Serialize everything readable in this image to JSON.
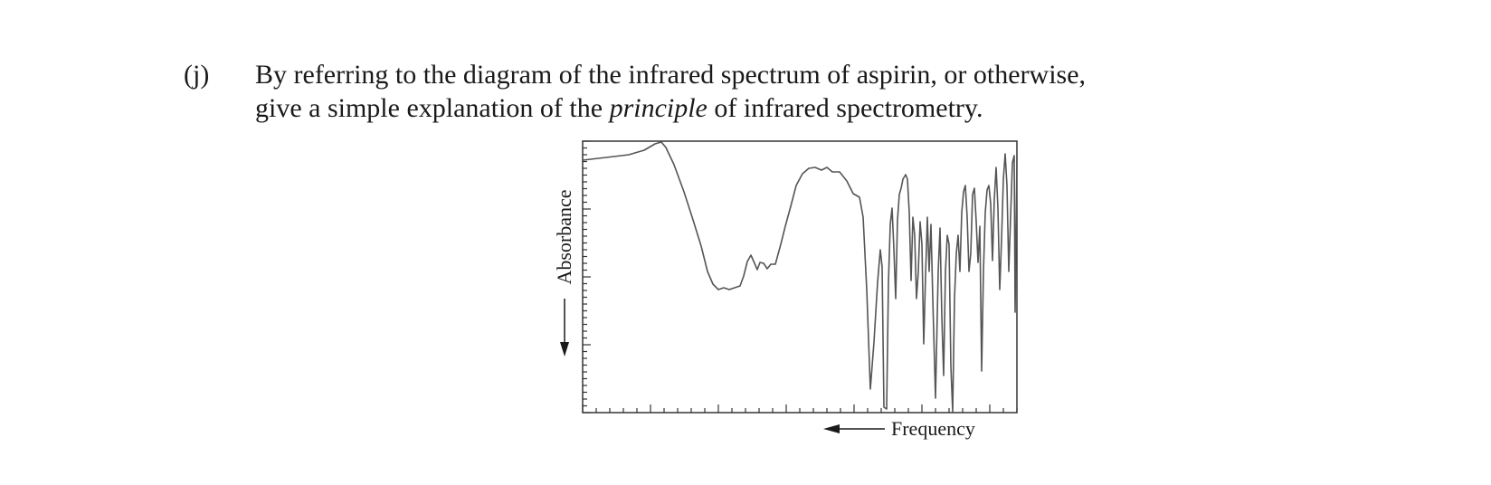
{
  "question": {
    "label": "(j)",
    "line1": "By referring to the diagram of the infrared spectrum of aspirin, or otherwise,",
    "line2_before": "give a simple explanation of the ",
    "line2_emphasis": "principle",
    "line2_after": " of infrared spectrometry."
  },
  "figure": {
    "ylabel": "Absorbance",
    "xlabel": "Frequency",
    "line_color": "#555555",
    "frame_color": "#333333"
  }
}
